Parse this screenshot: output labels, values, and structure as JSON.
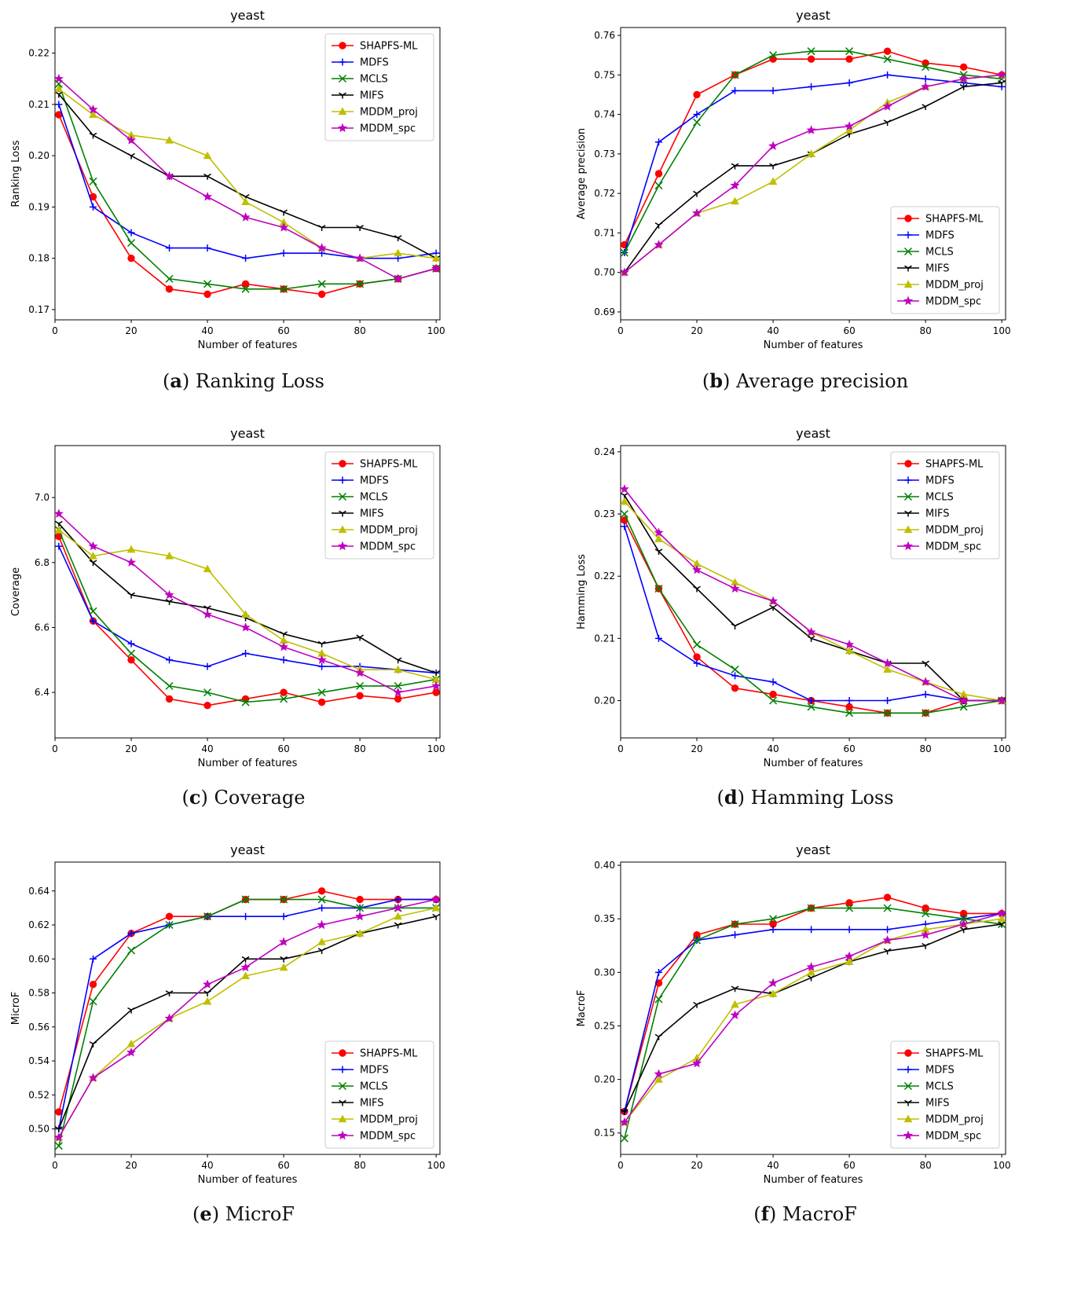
{
  "legend_series": [
    "SHAPFS-ML",
    "MDFS",
    "MCLS",
    "MIFS",
    "MDDM_proj",
    "MDDM_spc"
  ],
  "series_colors": {
    "SHAPFS-ML": "#ff0000",
    "MDFS": "#0000ff",
    "MCLS": "#008000",
    "MIFS": "#000000",
    "MDDM_proj": "#bfbf00",
    "MDDM_spc": "#bf00bf"
  },
  "series_markers": {
    "SHAPFS-ML": "circle",
    "MDFS": "plus",
    "MCLS": "x",
    "MIFS": "tri-down",
    "MDDM_proj": "triangle",
    "MDDM_spc": "star"
  },
  "panels": [
    {
      "letter": "a",
      "caption_text": "Ranking Loss"
    },
    {
      "letter": "b",
      "caption_text": "Average precision"
    },
    {
      "letter": "c",
      "caption_text": "Coverage"
    },
    {
      "letter": "d",
      "caption_text": "Hamming Loss"
    },
    {
      "letter": "e",
      "caption_text": "MicroF"
    },
    {
      "letter": "f",
      "caption_text": "MacroF"
    }
  ],
  "chart_data": [
    {
      "type": "line",
      "title": "yeast",
      "xlabel": "Number of features",
      "ylabel": "Ranking Loss",
      "xlim": [
        0,
        101
      ],
      "ylim": [
        0.168,
        0.225
      ],
      "xticks": [
        "0",
        "20",
        "40",
        "60",
        "80",
        "100"
      ],
      "yticks": [
        "0.17",
        "0.18",
        "0.19",
        "0.20",
        "0.21",
        "0.22"
      ],
      "legend_position": "top-right",
      "x": [
        1,
        10,
        20,
        30,
        40,
        50,
        60,
        70,
        80,
        90,
        100
      ],
      "series": [
        {
          "name": "SHAPFS-ML",
          "values": [
            0.208,
            0.192,
            0.18,
            0.174,
            0.173,
            0.175,
            0.174,
            0.173,
            0.175,
            0.176,
            0.178
          ]
        },
        {
          "name": "MDFS",
          "values": [
            0.21,
            0.19,
            0.185,
            0.182,
            0.182,
            0.18,
            0.181,
            0.181,
            0.18,
            0.18,
            0.181
          ]
        },
        {
          "name": "MCLS",
          "values": [
            0.214,
            0.195,
            0.183,
            0.176,
            0.175,
            0.174,
            0.174,
            0.175,
            0.175,
            0.176,
            0.178
          ]
        },
        {
          "name": "MIFS",
          "values": [
            0.212,
            0.204,
            0.2,
            0.196,
            0.196,
            0.192,
            0.189,
            0.186,
            0.186,
            0.184,
            0.18
          ]
        },
        {
          "name": "MDDM_proj",
          "values": [
            0.213,
            0.208,
            0.204,
            0.203,
            0.2,
            0.191,
            0.187,
            0.182,
            0.18,
            0.181,
            0.18
          ]
        },
        {
          "name": "MDDM_spc",
          "values": [
            0.215,
            0.209,
            0.203,
            0.196,
            0.192,
            0.188,
            0.186,
            0.182,
            0.18,
            0.176,
            0.178
          ]
        }
      ]
    },
    {
      "type": "line",
      "title": "yeast",
      "xlabel": "Number of features",
      "ylabel": "Average precision",
      "xlim": [
        0,
        101
      ],
      "ylim": [
        0.688,
        0.762
      ],
      "xticks": [
        "0",
        "20",
        "40",
        "60",
        "80",
        "100"
      ],
      "yticks": [
        "0.69",
        "0.70",
        "0.71",
        "0.72",
        "0.73",
        "0.74",
        "0.75",
        "0.76"
      ],
      "legend_position": "bottom-right",
      "x": [
        1,
        10,
        20,
        30,
        40,
        50,
        60,
        70,
        80,
        90,
        100
      ],
      "series": [
        {
          "name": "SHAPFS-ML",
          "values": [
            0.707,
            0.725,
            0.745,
            0.75,
            0.754,
            0.754,
            0.754,
            0.756,
            0.753,
            0.752,
            0.75
          ]
        },
        {
          "name": "MDFS",
          "values": [
            0.705,
            0.733,
            0.74,
            0.746,
            0.746,
            0.747,
            0.748,
            0.75,
            0.749,
            0.748,
            0.747
          ]
        },
        {
          "name": "MCLS",
          "values": [
            0.705,
            0.722,
            0.738,
            0.75,
            0.755,
            0.756,
            0.756,
            0.754,
            0.752,
            0.75,
            0.749
          ]
        },
        {
          "name": "MIFS",
          "values": [
            0.7,
            0.712,
            0.72,
            0.727,
            0.727,
            0.73,
            0.735,
            0.738,
            0.742,
            0.747,
            0.748
          ]
        },
        {
          "name": "MDDM_proj",
          "values": [
            0.7,
            0.707,
            0.715,
            0.718,
            0.723,
            0.73,
            0.736,
            0.743,
            0.747,
            0.749,
            0.75
          ]
        },
        {
          "name": "MDDM_spc",
          "values": [
            0.7,
            0.707,
            0.715,
            0.722,
            0.732,
            0.736,
            0.737,
            0.742,
            0.747,
            0.749,
            0.75
          ]
        }
      ]
    },
    {
      "type": "line",
      "title": "yeast",
      "xlabel": "Number of features",
      "ylabel": "Coverage",
      "xlim": [
        0,
        101
      ],
      "ylim": [
        6.26,
        7.16
      ],
      "xticks": [
        "0",
        "20",
        "40",
        "60",
        "80",
        "100"
      ],
      "yticks": [
        "6.4",
        "6.6",
        "6.8",
        "7.0"
      ],
      "legend_position": "top-right",
      "x": [
        1,
        10,
        20,
        30,
        40,
        50,
        60,
        70,
        80,
        90,
        100
      ],
      "series": [
        {
          "name": "SHAPFS-ML",
          "values": [
            6.88,
            6.62,
            6.5,
            6.38,
            6.36,
            6.38,
            6.4,
            6.37,
            6.39,
            6.38,
            6.4
          ]
        },
        {
          "name": "MDFS",
          "values": [
            6.85,
            6.62,
            6.55,
            6.5,
            6.48,
            6.52,
            6.5,
            6.48,
            6.48,
            6.47,
            6.46
          ]
        },
        {
          "name": "MCLS",
          "values": [
            6.9,
            6.65,
            6.52,
            6.42,
            6.4,
            6.37,
            6.38,
            6.4,
            6.42,
            6.42,
            6.44
          ]
        },
        {
          "name": "MIFS",
          "values": [
            6.92,
            6.8,
            6.7,
            6.68,
            6.66,
            6.63,
            6.58,
            6.55,
            6.57,
            6.5,
            6.46
          ]
        },
        {
          "name": "MDDM_proj",
          "values": [
            6.9,
            6.82,
            6.84,
            6.82,
            6.78,
            6.64,
            6.56,
            6.52,
            6.47,
            6.47,
            6.44
          ]
        },
        {
          "name": "MDDM_spc",
          "values": [
            6.95,
            6.85,
            6.8,
            6.7,
            6.64,
            6.6,
            6.54,
            6.5,
            6.46,
            6.4,
            6.42
          ]
        }
      ]
    },
    {
      "type": "line",
      "title": "yeast",
      "xlabel": "Number of features",
      "ylabel": "Hamming Loss",
      "xlim": [
        0,
        101
      ],
      "ylim": [
        0.194,
        0.241
      ],
      "xticks": [
        "0",
        "20",
        "40",
        "60",
        "80",
        "100"
      ],
      "yticks": [
        "0.20",
        "0.21",
        "0.22",
        "0.23",
        "0.24"
      ],
      "legend_position": "top-right",
      "x": [
        1,
        10,
        20,
        30,
        40,
        50,
        60,
        70,
        80,
        90,
        100
      ],
      "series": [
        {
          "name": "SHAPFS-ML",
          "values": [
            0.229,
            0.218,
            0.207,
            0.202,
            0.201,
            0.2,
            0.199,
            0.198,
            0.198,
            0.2,
            0.2
          ]
        },
        {
          "name": "MDFS",
          "values": [
            0.228,
            0.21,
            0.206,
            0.204,
            0.203,
            0.2,
            0.2,
            0.2,
            0.201,
            0.2,
            0.2
          ]
        },
        {
          "name": "MCLS",
          "values": [
            0.23,
            0.218,
            0.209,
            0.205,
            0.2,
            0.199,
            0.198,
            0.198,
            0.198,
            0.199,
            0.2
          ]
        },
        {
          "name": "MIFS",
          "values": [
            0.233,
            0.224,
            0.218,
            0.212,
            0.215,
            0.21,
            0.208,
            0.206,
            0.206,
            0.2,
            0.2
          ]
        },
        {
          "name": "MDDM_proj",
          "values": [
            0.232,
            0.226,
            0.222,
            0.219,
            0.216,
            0.211,
            0.208,
            0.205,
            0.203,
            0.201,
            0.2
          ]
        },
        {
          "name": "MDDM_spc",
          "values": [
            0.234,
            0.227,
            0.221,
            0.218,
            0.216,
            0.211,
            0.209,
            0.206,
            0.203,
            0.2,
            0.2
          ]
        }
      ]
    },
    {
      "type": "line",
      "title": "yeast",
      "xlabel": "Number of features",
      "ylabel": "MicroF",
      "xlim": [
        0,
        101
      ],
      "ylim": [
        0.485,
        0.657
      ],
      "xticks": [
        "0",
        "20",
        "40",
        "60",
        "80",
        "100"
      ],
      "yticks": [
        "0.50",
        "0.52",
        "0.54",
        "0.56",
        "0.58",
        "0.60",
        "0.62",
        "0.64"
      ],
      "legend_position": "bottom-right",
      "x": [
        1,
        10,
        20,
        30,
        40,
        50,
        60,
        70,
        80,
        90,
        100
      ],
      "series": [
        {
          "name": "SHAPFS-ML",
          "values": [
            0.51,
            0.585,
            0.615,
            0.625,
            0.625,
            0.635,
            0.635,
            0.64,
            0.635,
            0.635,
            0.635
          ]
        },
        {
          "name": "MDFS",
          "values": [
            0.5,
            0.6,
            0.615,
            0.62,
            0.625,
            0.625,
            0.625,
            0.63,
            0.63,
            0.635,
            0.635
          ]
        },
        {
          "name": "MCLS",
          "values": [
            0.49,
            0.575,
            0.605,
            0.62,
            0.625,
            0.635,
            0.635,
            0.635,
            0.63,
            0.63,
            0.63
          ]
        },
        {
          "name": "MIFS",
          "values": [
            0.5,
            0.55,
            0.57,
            0.58,
            0.58,
            0.6,
            0.6,
            0.605,
            0.615,
            0.62,
            0.625
          ]
        },
        {
          "name": "MDDM_proj",
          "values": [
            0.495,
            0.53,
            0.55,
            0.565,
            0.575,
            0.59,
            0.595,
            0.61,
            0.615,
            0.625,
            0.63
          ]
        },
        {
          "name": "MDDM_spc",
          "values": [
            0.495,
            0.53,
            0.545,
            0.565,
            0.585,
            0.595,
            0.61,
            0.62,
            0.625,
            0.63,
            0.635
          ]
        }
      ]
    },
    {
      "type": "line",
      "title": "yeast",
      "xlabel": "Number of features",
      "ylabel": "MacroF",
      "xlim": [
        0,
        101
      ],
      "ylim": [
        0.13,
        0.403
      ],
      "xticks": [
        "0",
        "20",
        "40",
        "60",
        "80",
        "100"
      ],
      "yticks": [
        "0.15",
        "0.20",
        "0.25",
        "0.30",
        "0.35",
        "0.40"
      ],
      "legend_position": "bottom-right",
      "x": [
        1,
        10,
        20,
        30,
        40,
        50,
        60,
        70,
        80,
        90,
        100
      ],
      "series": [
        {
          "name": "SHAPFS-ML",
          "values": [
            0.17,
            0.29,
            0.335,
            0.345,
            0.345,
            0.36,
            0.365,
            0.37,
            0.36,
            0.355,
            0.355
          ]
        },
        {
          "name": "MDFS",
          "values": [
            0.17,
            0.3,
            0.33,
            0.335,
            0.34,
            0.34,
            0.34,
            0.34,
            0.345,
            0.35,
            0.355
          ]
        },
        {
          "name": "MCLS",
          "values": [
            0.145,
            0.275,
            0.33,
            0.345,
            0.35,
            0.36,
            0.36,
            0.36,
            0.355,
            0.35,
            0.345
          ]
        },
        {
          "name": "MIFS",
          "values": [
            0.17,
            0.24,
            0.27,
            0.285,
            0.28,
            0.295,
            0.31,
            0.32,
            0.325,
            0.34,
            0.345
          ]
        },
        {
          "name": "MDDM_proj",
          "values": [
            0.16,
            0.2,
            0.22,
            0.27,
            0.28,
            0.3,
            0.31,
            0.33,
            0.34,
            0.345,
            0.35
          ]
        },
        {
          "name": "MDDM_spc",
          "values": [
            0.16,
            0.205,
            0.215,
            0.26,
            0.29,
            0.305,
            0.315,
            0.33,
            0.335,
            0.345,
            0.355
          ]
        }
      ]
    }
  ]
}
